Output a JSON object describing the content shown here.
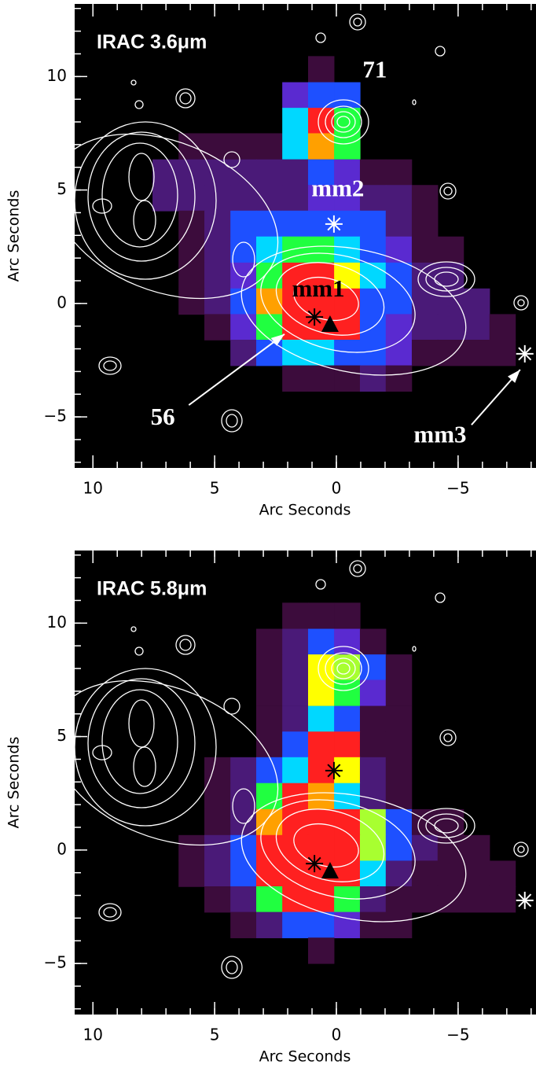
{
  "chart_data": [
    {
      "type": "heatmap",
      "title": "IRAC 3.6μm",
      "xlabel": "Arc Seconds",
      "ylabel": "Arc Seconds",
      "xlim": [
        10.75,
        -8.2
      ],
      "ylim": [
        -7.25,
        13.2
      ],
      "xticks": [
        10,
        5,
        0,
        {
          "value": -5,
          "label": "−5"
        }
      ],
      "yticks": [
        {
          "value": -5,
          "label": "−5"
        },
        0,
        5,
        10
      ],
      "xticks_minor": [
        10,
        9,
        8,
        7,
        6,
        5,
        4,
        3,
        2,
        1,
        0,
        -1,
        -2,
        -3,
        -4,
        -5,
        -6,
        -7,
        -8
      ],
      "yticks_minor": [
        -7,
        -6,
        -5,
        -4,
        -3,
        -2,
        -1,
        0,
        1,
        2,
        3,
        4,
        5,
        6,
        7,
        8,
        9,
        10,
        11,
        12,
        13
      ],
      "clim": [
        1,
        10
      ],
      "colormap": [
        "#3c0c3c",
        "#4a1a78",
        "#5a2ad0",
        "#1e50ff",
        "#00d8ff",
        "#20ff40",
        "#a8ff30",
        "#ffff00",
        "#ffa000",
        "#ff2020"
      ],
      "cell_width": 1.065,
      "cell_height": 1.14,
      "x": [
        7.02,
        5.95,
        4.89,
        3.82,
        2.76,
        1.69,
        0.63,
        -0.44,
        -1.5,
        -2.56,
        -3.63,
        -4.69,
        -5.76,
        -6.82
      ],
      "y": [
        10.33,
        9.18,
        8.05,
        6.93,
        5.78,
        4.65,
        3.52,
        2.38,
        1.23,
        0.09,
        -1.04,
        -2.17,
        -3.3
      ],
      "values": [
        [
          null,
          null,
          null,
          null,
          null,
          null,
          1,
          null,
          null,
          null,
          null,
          null,
          null,
          null
        ],
        [
          null,
          null,
          null,
          null,
          null,
          3,
          4,
          4,
          null,
          null,
          null,
          null,
          null,
          null
        ],
        [
          null,
          null,
          null,
          null,
          null,
          5,
          10,
          6,
          null,
          null,
          null,
          null,
          null,
          null
        ],
        [
          null,
          1,
          1,
          1,
          1,
          5,
          9,
          6,
          null,
          null,
          null,
          null,
          null,
          null
        ],
        [
          2,
          2,
          2,
          2,
          2,
          2,
          4,
          3,
          1,
          1,
          null,
          null,
          null,
          null
        ],
        [
          2,
          2,
          2,
          2,
          2,
          2,
          3,
          3,
          2,
          2,
          1,
          null,
          null,
          null
        ],
        [
          null,
          1,
          2,
          4,
          4,
          4,
          4,
          4,
          4,
          2,
          1,
          null,
          null,
          null
        ],
        [
          null,
          1,
          2,
          4,
          5,
          6,
          6,
          5,
          4,
          3,
          1,
          1,
          null,
          null
        ],
        [
          null,
          1,
          2,
          3,
          6,
          10,
          10,
          8,
          5,
          4,
          2,
          2,
          null,
          null
        ],
        [
          null,
          1,
          2,
          4,
          9,
          10,
          10,
          10,
          4,
          4,
          2,
          2,
          2,
          null
        ],
        [
          null,
          null,
          1,
          3,
          6,
          10,
          10,
          10,
          4,
          3,
          2,
          2,
          2,
          1
        ],
        [
          null,
          null,
          null,
          2,
          4,
          5,
          5,
          4,
          4,
          3,
          1,
          1,
          1,
          1
        ],
        [
          null,
          null,
          null,
          null,
          null,
          1,
          1,
          1,
          2,
          1,
          null,
          null,
          null,
          null
        ]
      ],
      "markers": [
        {
          "x": 0.1,
          "y": 3.5,
          "symbol": "asterisk",
          "color": "#ffffff"
        },
        {
          "x": 0.9,
          "y": -0.6,
          "symbol": "asterisk",
          "color": "#000000"
        },
        {
          "x": 0.26,
          "y": -0.94,
          "symbol": "triangle",
          "color": "#000000"
        },
        {
          "x": -7.74,
          "y": -2.22,
          "symbol": "asterisk",
          "color": "#ffffff"
        }
      ],
      "annotations": [
        {
          "text": "71",
          "x": -1.58,
          "y": 10.2,
          "color": "#ffffff"
        },
        {
          "text": "mm2",
          "x": -0.06,
          "y": 4.97,
          "color": "#ffffff"
        },
        {
          "text": "mm1",
          "x": 0.74,
          "y": 0.56,
          "color": "#000000"
        },
        {
          "text": "56",
          "x": 7.13,
          "y": -5.1,
          "color": "#ffffff",
          "arrow_from": [
            6.06,
            -4.48
          ],
          "arrow_to": [
            2.13,
            -1.35
          ]
        },
        {
          "text": "mm3",
          "x": -4.26,
          "y": -5.87,
          "color": "#ffffff",
          "arrow_from": [
            -5.55,
            -5.35
          ],
          "arrow_to": [
            -7.55,
            -2.92
          ]
        }
      ]
    },
    {
      "type": "heatmap",
      "title": "IRAC 5.8μm",
      "xlabel": "Arc Seconds",
      "ylabel": "Arc Seconds",
      "xlim": [
        10.75,
        -8.2
      ],
      "ylim": [
        -7.25,
        13.2
      ],
      "xticks": [
        10,
        5,
        0,
        {
          "value": -5,
          "label": "−5"
        }
      ],
      "yticks": [
        {
          "value": -5,
          "label": "−5"
        },
        0,
        5,
        10
      ],
      "xticks_minor": [
        10,
        9,
        8,
        7,
        6,
        5,
        4,
        3,
        2,
        1,
        0,
        -1,
        -2,
        -3,
        -4,
        -5,
        -6,
        -7,
        -8
      ],
      "yticks_minor": [
        -7,
        -6,
        -5,
        -4,
        -3,
        -2,
        -1,
        0,
        1,
        2,
        3,
        4,
        5,
        6,
        7,
        8,
        9,
        10,
        11,
        12,
        13
      ],
      "clim": [
        1,
        10
      ],
      "colormap": [
        "#3c0c3c",
        "#4a1a78",
        "#5a2ad0",
        "#1e50ff",
        "#00d8ff",
        "#20ff40",
        "#a8ff30",
        "#ffff00",
        "#ffa000",
        "#ff2020"
      ],
      "cell_width": 1.065,
      "cell_height": 1.14,
      "x": [
        7.02,
        5.95,
        4.89,
        3.82,
        2.76,
        1.69,
        0.63,
        -0.44,
        -1.5,
        -2.56,
        -3.63,
        -4.69,
        -5.76,
        -6.82
      ],
      "y": [
        10.33,
        9.18,
        8.05,
        6.93,
        5.78,
        4.65,
        3.52,
        2.38,
        1.23,
        0.09,
        -1.04,
        -2.17,
        -3.3,
        -4.43
      ],
      "values": [
        [
          null,
          null,
          null,
          null,
          null,
          1,
          1,
          1,
          null,
          null,
          null,
          null,
          null,
          null
        ],
        [
          null,
          null,
          null,
          null,
          1,
          2,
          4,
          3,
          1,
          null,
          null,
          null,
          null,
          null
        ],
        [
          null,
          null,
          null,
          null,
          1,
          2,
          8,
          7,
          4,
          1,
          null,
          null,
          null,
          null
        ],
        [
          null,
          null,
          null,
          null,
          1,
          2,
          8,
          6,
          3,
          1,
          null,
          null,
          null,
          null
        ],
        [
          null,
          null,
          null,
          null,
          1,
          2,
          5,
          4,
          1,
          1,
          null,
          null,
          null,
          null
        ],
        [
          null,
          null,
          null,
          null,
          1,
          4,
          10,
          10,
          1,
          1,
          null,
          null,
          null,
          null
        ],
        [
          null,
          null,
          1,
          2,
          4,
          5,
          10,
          8,
          2,
          1,
          null,
          null,
          null,
          null
        ],
        [
          null,
          null,
          1,
          2,
          6,
          10,
          9,
          5,
          2,
          1,
          null,
          null,
          null,
          null
        ],
        [
          null,
          null,
          1,
          2,
          9,
          10,
          10,
          10,
          7,
          4,
          1,
          1,
          null,
          null
        ],
        [
          null,
          1,
          2,
          4,
          10,
          10,
          10,
          10,
          7,
          4,
          2,
          1,
          1,
          null
        ],
        [
          null,
          1,
          2,
          4,
          10,
          10,
          10,
          10,
          5,
          2,
          1,
          1,
          1,
          1
        ],
        [
          null,
          null,
          1,
          2,
          6,
          10,
          10,
          6,
          2,
          1,
          1,
          1,
          1,
          1
        ],
        [
          null,
          null,
          null,
          1,
          2,
          4,
          4,
          3,
          1,
          1,
          null,
          null,
          null,
          null
        ],
        [
          null,
          null,
          null,
          null,
          null,
          null,
          1,
          null,
          null,
          null,
          null,
          null,
          null,
          null
        ]
      ],
      "markers": [
        {
          "x": 0.1,
          "y": 3.5,
          "symbol": "asterisk",
          "color": "#000000"
        },
        {
          "x": 0.9,
          "y": -0.6,
          "symbol": "asterisk",
          "color": "#000000"
        },
        {
          "x": 0.26,
          "y": -0.94,
          "symbol": "triangle",
          "color": "#000000"
        },
        {
          "x": -7.74,
          "y": -2.22,
          "symbol": "asterisk",
          "color": "#ffffff"
        }
      ],
      "annotations": []
    }
  ]
}
